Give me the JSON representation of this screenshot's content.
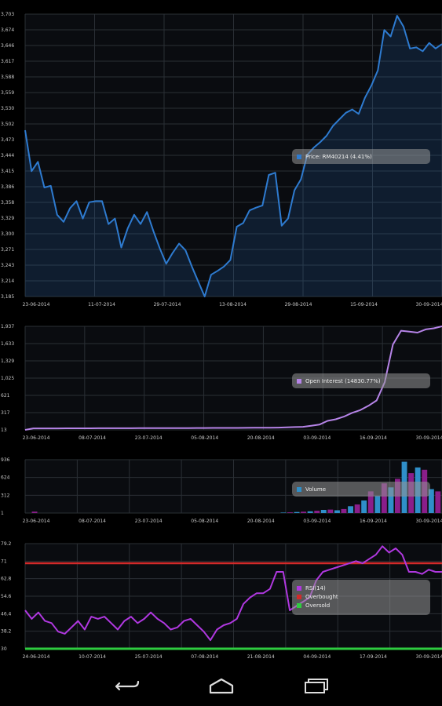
{
  "colors": {
    "price": "#2e7bd0",
    "oi": "#b684e8",
    "vol_blue": "#2f8fc9",
    "vol_purple": "#8a1e8a",
    "rsi": "#b038e0",
    "overbought": "#d22a2a",
    "oversold": "#2ecc40",
    "grid": "#2a2f35",
    "bg": "#000000",
    "panel": "#0a0c10"
  },
  "chart_data": [
    {
      "type": "line",
      "name": "price",
      "y_ticks": [
        "3,703",
        "3,674",
        "3,646",
        "3,617",
        "3,588",
        "3,559",
        "3,530",
        "3,502",
        "3,473",
        "3,444",
        "3,415",
        "3,386",
        "3,358",
        "3,329",
        "3,300",
        "3,271",
        "3,243",
        "3,214",
        "3,185"
      ],
      "ylim": [
        3185,
        3703
      ],
      "x_labels": [
        "23-06-2014",
        "11-07-2014",
        "29-07-2014",
        "13-08-2014",
        "29-08-2014",
        "15-09-2014",
        "30-09-2014"
      ],
      "legend": {
        "label": "Price: RM40214 (4.41%)"
      },
      "series": [
        {
          "name": "Price",
          "values": [
            3490,
            3415,
            3432,
            3385,
            3388,
            3335,
            3322,
            3347,
            3360,
            3328,
            3358,
            3360,
            3360,
            3318,
            3328,
            3275,
            3310,
            3335,
            3318,
            3340,
            3305,
            3273,
            3245,
            3265,
            3282,
            3270,
            3240,
            3212,
            3185,
            3225,
            3232,
            3240,
            3252,
            3313,
            3320,
            3343,
            3348,
            3352,
            3408,
            3412,
            3315,
            3328,
            3380,
            3400,
            3445,
            3458,
            3468,
            3480,
            3498,
            3510,
            3522,
            3528,
            3520,
            3550,
            3572,
            3600,
            3674,
            3662,
            3700,
            3680,
            3640,
            3642,
            3635,
            3650,
            3640,
            3648
          ]
        }
      ]
    },
    {
      "type": "line",
      "name": "open_interest",
      "y_ticks": [
        "1,937",
        "1,633",
        "1,329",
        "1,025",
        "621",
        "317",
        "13"
      ],
      "ylim": [
        13,
        1937
      ],
      "x_labels": [
        "23-06-2014",
        "08-07-2014",
        "23-07-2014",
        "05-08-2014",
        "20-08-2014",
        "03-09-2014",
        "16-09-2014",
        "30-09-2014"
      ],
      "legend": {
        "label": "Open Interest (14830.77%)"
      },
      "series": [
        {
          "name": "Open Interest",
          "values": [
            13,
            40,
            40,
            40,
            40,
            42,
            42,
            42,
            42,
            43,
            43,
            44,
            44,
            44,
            45,
            45,
            45,
            46,
            46,
            47,
            47,
            48,
            48,
            49,
            49,
            50,
            50,
            51,
            52,
            53,
            54,
            55,
            60,
            65,
            70,
            90,
            110,
            180,
            210,
            260,
            330,
            380,
            460,
            560,
            900,
            1600,
            1855,
            1840,
            1820,
            1880,
            1900,
            1937
          ]
        }
      ]
    },
    {
      "type": "bar",
      "name": "volume",
      "y_ticks": [
        "936",
        "624",
        "312",
        "1"
      ],
      "ylim": [
        0,
        936
      ],
      "x_labels": [
        "23-06-2014",
        "08-07-2014",
        "23-07-2014",
        "05-08-2014",
        "20-08-2014",
        "03-09-2014",
        "16-09-2014",
        "30-09-2014"
      ],
      "legend": {
        "label": "Volume"
      },
      "series": [
        {
          "name": "Volume",
          "values": [
            0,
            25,
            0,
            0,
            0,
            0,
            0,
            0,
            0,
            0,
            0,
            0,
            0,
            0,
            0,
            0,
            0,
            0,
            0,
            0,
            0,
            0,
            0,
            0,
            0,
            0,
            0,
            0,
            0,
            0,
            0,
            0,
            0,
            0,
            0,
            0,
            0,
            0,
            8,
            12,
            18,
            24,
            30,
            40,
            55,
            60,
            48,
            70,
            120,
            150,
            220,
            380,
            300,
            520,
            450,
            600,
            900,
            700,
            800,
            760,
            420,
            380
          ]
        }
      ]
    },
    {
      "type": "line",
      "name": "rsi",
      "y_ticks": [
        "79.2",
        "71",
        "62.8",
        "54.6",
        "46.4",
        "38.2",
        "30"
      ],
      "ylim": [
        30,
        79.2
      ],
      "x_labels": [
        "24-06-2014",
        "10-07-2014",
        "25-07-2014",
        "07-08-2014",
        "21-08-2014",
        "04-09-2014",
        "17-09-2014",
        "30-09-2014"
      ],
      "legend": [
        {
          "label": "RSI(14)"
        },
        {
          "label": "Overbought"
        },
        {
          "label": "Oversold"
        }
      ],
      "thresholds": {
        "overbought": 70,
        "oversold": 30
      },
      "series": [
        {
          "name": "RSI",
          "values": [
            48,
            44,
            47,
            43,
            42,
            38,
            37,
            40,
            43,
            39,
            45,
            44,
            45,
            42,
            39,
            43,
            45,
            42,
            44,
            47,
            44,
            42,
            39,
            40,
            43,
            44,
            41,
            38,
            34,
            39,
            41,
            42,
            44,
            51,
            54,
            56,
            56,
            58,
            66,
            66,
            48,
            50,
            52,
            54,
            62,
            66,
            67,
            68,
            69,
            70,
            71,
            70,
            72,
            74,
            78,
            75,
            77,
            74,
            66,
            66,
            65,
            67,
            66,
            66
          ]
        }
      ]
    }
  ],
  "navbar": {
    "back": "back-icon",
    "home": "home-icon",
    "recents": "recents-icon"
  }
}
